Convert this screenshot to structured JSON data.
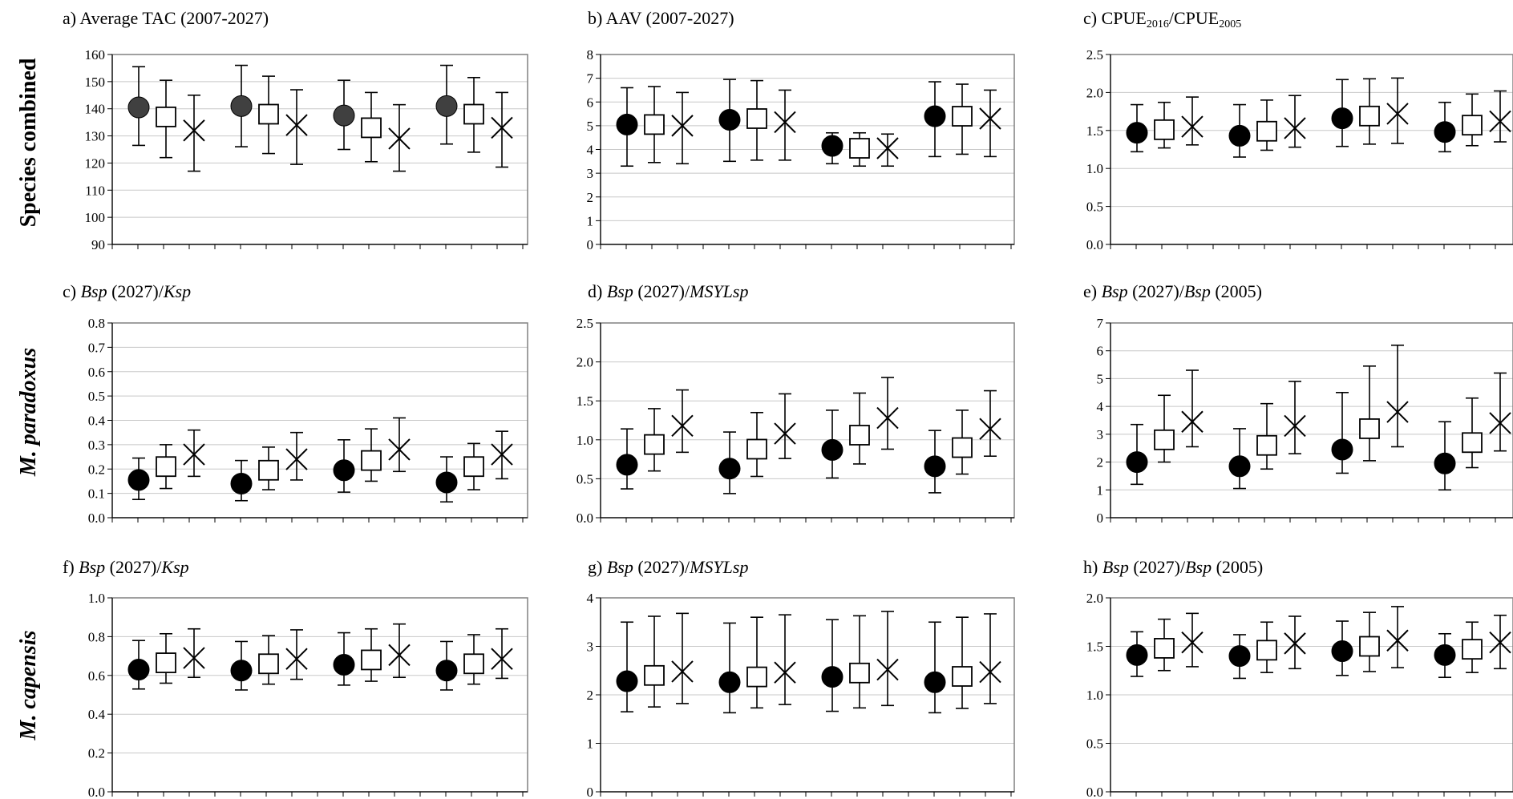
{
  "row_labels": [
    "Species combined",
    "M. paradoxus",
    "M. capensis"
  ],
  "chart_data": [
    {
      "type": "scatter",
      "row": 0,
      "col": 0,
      "title": [
        {
          "t": "a) Average TAC (2007-2027)"
        }
      ],
      "ylim": [
        90,
        160
      ],
      "yticks": [
        90,
        100,
        110,
        120,
        130,
        140,
        150,
        160
      ],
      "yticklabels": [
        "90",
        "100",
        "110",
        "120",
        "130",
        "140",
        "150",
        "160"
      ],
      "circle_fill": "#404040",
      "groups": [
        [
          {
            "m": 140.5,
            "lo": 126.5,
            "hi": 155.5
          },
          {
            "m": 137.0,
            "lo": 122.0,
            "hi": 150.5
          },
          {
            "m": 132.0,
            "lo": 117.0,
            "hi": 145.0
          }
        ],
        [
          {
            "m": 141.0,
            "lo": 126.0,
            "hi": 156.0
          },
          {
            "m": 138.0,
            "lo": 123.5,
            "hi": 152.0
          },
          {
            "m": 134.0,
            "lo": 119.5,
            "hi": 147.0
          }
        ],
        [
          {
            "m": 137.5,
            "lo": 125.0,
            "hi": 150.5
          },
          {
            "m": 133.0,
            "lo": 120.5,
            "hi": 146.0
          },
          {
            "m": 129.0,
            "lo": 117.0,
            "hi": 141.5
          }
        ],
        [
          {
            "m": 141.0,
            "lo": 127.0,
            "hi": 156.0
          },
          {
            "m": 138.0,
            "lo": 124.0,
            "hi": 151.5
          },
          {
            "m": 133.0,
            "lo": 118.5,
            "hi": 146.0
          }
        ]
      ]
    },
    {
      "type": "scatter",
      "row": 0,
      "col": 1,
      "title": [
        {
          "t": "b) AAV (2007-2027)"
        }
      ],
      "ylim": [
        0,
        8
      ],
      "yticks": [
        0,
        1,
        2,
        3,
        4,
        5,
        6,
        7,
        8
      ],
      "yticklabels": [
        "0",
        "1",
        "2",
        "3",
        "4",
        "5",
        "6",
        "7",
        "8"
      ],
      "circle_fill": "#000000",
      "groups": [
        [
          {
            "m": 5.05,
            "lo": 3.3,
            "hi": 6.6
          },
          {
            "m": 5.05,
            "lo": 3.45,
            "hi": 6.65
          },
          {
            "m": 5.0,
            "lo": 3.4,
            "hi": 6.4
          }
        ],
        [
          {
            "m": 5.25,
            "lo": 3.5,
            "hi": 6.95
          },
          {
            "m": 5.3,
            "lo": 3.55,
            "hi": 6.9
          },
          {
            "m": 5.15,
            "lo": 3.55,
            "hi": 6.5
          }
        ],
        [
          {
            "m": 4.15,
            "lo": 3.4,
            "hi": 4.7
          },
          {
            "m": 4.05,
            "lo": 3.3,
            "hi": 4.7
          },
          {
            "m": 4.05,
            "lo": 3.3,
            "hi": 4.65
          }
        ],
        [
          {
            "m": 5.4,
            "lo": 3.7,
            "hi": 6.85
          },
          {
            "m": 5.4,
            "lo": 3.8,
            "hi": 6.75
          },
          {
            "m": 5.3,
            "lo": 3.7,
            "hi": 6.5
          }
        ]
      ]
    },
    {
      "type": "scatter",
      "row": 0,
      "col": 2,
      "title": [
        {
          "t": "c) CPUE"
        },
        {
          "t": "2016",
          "sub": true
        },
        {
          "t": "/CPUE"
        },
        {
          "t": "2005",
          "sub": true
        }
      ],
      "ylim": [
        0,
        2.5
      ],
      "yticks": [
        0,
        0.5,
        1,
        1.5,
        2,
        2.5
      ],
      "yticklabels": [
        "0.0",
        "0.5",
        "1.0",
        "1.5",
        "2.0",
        "2.5"
      ],
      "circle_fill": "#000000",
      "groups": [
        [
          {
            "m": 1.47,
            "lo": 1.22,
            "hi": 1.84
          },
          {
            "m": 1.51,
            "lo": 1.27,
            "hi": 1.87
          },
          {
            "m": 1.55,
            "lo": 1.31,
            "hi": 1.94
          }
        ],
        [
          {
            "m": 1.43,
            "lo": 1.15,
            "hi": 1.84
          },
          {
            "m": 1.49,
            "lo": 1.24,
            "hi": 1.9
          },
          {
            "m": 1.53,
            "lo": 1.28,
            "hi": 1.96
          }
        ],
        [
          {
            "m": 1.66,
            "lo": 1.29,
            "hi": 2.17
          },
          {
            "m": 1.69,
            "lo": 1.32,
            "hi": 2.18
          },
          {
            "m": 1.72,
            "lo": 1.33,
            "hi": 2.19
          }
        ],
        [
          {
            "m": 1.48,
            "lo": 1.22,
            "hi": 1.87
          },
          {
            "m": 1.57,
            "lo": 1.3,
            "hi": 1.98
          },
          {
            "m": 1.62,
            "lo": 1.35,
            "hi": 2.02
          }
        ]
      ]
    },
    {
      "type": "scatter",
      "row": 1,
      "col": 0,
      "title": [
        {
          "t": "c) "
        },
        {
          "t": "Bsp",
          "i": true
        },
        {
          "t": " (2027)/"
        },
        {
          "t": "Ksp",
          "i": true
        }
      ],
      "ylim": [
        0,
        0.8
      ],
      "yticks": [
        0,
        0.1,
        0.2,
        0.3,
        0.4,
        0.5,
        0.6,
        0.7,
        0.8
      ],
      "yticklabels": [
        "0.0",
        "0.1",
        "0.2",
        "0.3",
        "0.4",
        "0.5",
        "0.6",
        "0.7",
        "0.8"
      ],
      "circle_fill": "#000000",
      "groups": [
        [
          {
            "m": 0.155,
            "lo": 0.075,
            "hi": 0.245
          },
          {
            "m": 0.21,
            "lo": 0.12,
            "hi": 0.3
          },
          {
            "m": 0.26,
            "lo": 0.17,
            "hi": 0.36
          }
        ],
        [
          {
            "m": 0.14,
            "lo": 0.07,
            "hi": 0.235
          },
          {
            "m": 0.195,
            "lo": 0.115,
            "hi": 0.29
          },
          {
            "m": 0.24,
            "lo": 0.155,
            "hi": 0.35
          }
        ],
        [
          {
            "m": 0.195,
            "lo": 0.105,
            "hi": 0.32
          },
          {
            "m": 0.235,
            "lo": 0.15,
            "hi": 0.365
          },
          {
            "m": 0.28,
            "lo": 0.19,
            "hi": 0.41
          }
        ],
        [
          {
            "m": 0.145,
            "lo": 0.065,
            "hi": 0.25
          },
          {
            "m": 0.21,
            "lo": 0.115,
            "hi": 0.305
          },
          {
            "m": 0.26,
            "lo": 0.16,
            "hi": 0.355
          }
        ]
      ]
    },
    {
      "type": "scatter",
      "row": 1,
      "col": 1,
      "title": [
        {
          "t": "d) "
        },
        {
          "t": "Bsp",
          "i": true
        },
        {
          "t": " (2027)/"
        },
        {
          "t": "MSYLsp",
          "i": true
        }
      ],
      "ylim": [
        0,
        2.5
      ],
      "yticks": [
        0,
        0.5,
        1,
        1.5,
        2,
        2.5
      ],
      "yticklabels": [
        "0.0",
        "0.5",
        "1.0",
        "1.5",
        "2.0",
        "2.5"
      ],
      "circle_fill": "#000000",
      "groups": [
        [
          {
            "m": 0.68,
            "lo": 0.37,
            "hi": 1.14
          },
          {
            "m": 0.94,
            "lo": 0.6,
            "hi": 1.4
          },
          {
            "m": 1.18,
            "lo": 0.84,
            "hi": 1.64
          }
        ],
        [
          {
            "m": 0.63,
            "lo": 0.31,
            "hi": 1.1
          },
          {
            "m": 0.88,
            "lo": 0.53,
            "hi": 1.35
          },
          {
            "m": 1.08,
            "lo": 0.76,
            "hi": 1.59
          }
        ],
        [
          {
            "m": 0.87,
            "lo": 0.51,
            "hi": 1.38
          },
          {
            "m": 1.06,
            "lo": 0.69,
            "hi": 1.6
          },
          {
            "m": 1.28,
            "lo": 0.88,
            "hi": 1.8
          }
        ],
        [
          {
            "m": 0.66,
            "lo": 0.32,
            "hi": 1.12
          },
          {
            "m": 0.9,
            "lo": 0.56,
            "hi": 1.38
          },
          {
            "m": 1.14,
            "lo": 0.79,
            "hi": 1.63
          }
        ]
      ]
    },
    {
      "type": "scatter",
      "row": 1,
      "col": 2,
      "title": [
        {
          "t": "e) "
        },
        {
          "t": "Bsp",
          "i": true
        },
        {
          "t": " (2027)/"
        },
        {
          "t": "Bsp",
          "i": true
        },
        {
          "t": " (2005)"
        }
      ],
      "ylim": [
        0,
        7
      ],
      "yticks": [
        0,
        1,
        2,
        3,
        4,
        5,
        6,
        7
      ],
      "yticklabels": [
        "0",
        "1",
        "2",
        "3",
        "4",
        "5",
        "6",
        "7"
      ],
      "circle_fill": "#000000",
      "groups": [
        [
          {
            "m": 2.0,
            "lo": 1.2,
            "hi": 3.35
          },
          {
            "m": 2.8,
            "lo": 2.0,
            "hi": 4.4
          },
          {
            "m": 3.45,
            "lo": 2.55,
            "hi": 5.3
          }
        ],
        [
          {
            "m": 1.85,
            "lo": 1.05,
            "hi": 3.2
          },
          {
            "m": 2.6,
            "lo": 1.75,
            "hi": 4.1
          },
          {
            "m": 3.3,
            "lo": 2.3,
            "hi": 4.9
          }
        ],
        [
          {
            "m": 2.45,
            "lo": 1.6,
            "hi": 4.5
          },
          {
            "m": 3.2,
            "lo": 2.05,
            "hi": 5.45
          },
          {
            "m": 3.8,
            "lo": 2.55,
            "hi": 6.2
          }
        ],
        [
          {
            "m": 1.95,
            "lo": 1.0,
            "hi": 3.45
          },
          {
            "m": 2.7,
            "lo": 1.8,
            "hi": 4.3
          },
          {
            "m": 3.4,
            "lo": 2.4,
            "hi": 5.2
          }
        ]
      ]
    },
    {
      "type": "scatter",
      "row": 2,
      "col": 0,
      "title": [
        {
          "t": "f) "
        },
        {
          "t": "Bsp",
          "i": true
        },
        {
          "t": " (2027)/"
        },
        {
          "t": "Ksp",
          "i": true
        }
      ],
      "ylim": [
        0,
        1
      ],
      "yticks": [
        0,
        0.2,
        0.4,
        0.6,
        0.8,
        1
      ],
      "yticklabels": [
        "0.0",
        "0.2",
        "0.4",
        "0.6",
        "0.8",
        "1.0"
      ],
      "circle_fill": "#000000",
      "groups": [
        [
          {
            "m": 0.63,
            "lo": 0.53,
            "hi": 0.78
          },
          {
            "m": 0.665,
            "lo": 0.56,
            "hi": 0.815
          },
          {
            "m": 0.69,
            "lo": 0.59,
            "hi": 0.84
          }
        ],
        [
          {
            "m": 0.625,
            "lo": 0.525,
            "hi": 0.775
          },
          {
            "m": 0.66,
            "lo": 0.555,
            "hi": 0.805
          },
          {
            "m": 0.685,
            "lo": 0.58,
            "hi": 0.835
          }
        ],
        [
          {
            "m": 0.655,
            "lo": 0.55,
            "hi": 0.82
          },
          {
            "m": 0.68,
            "lo": 0.57,
            "hi": 0.84
          },
          {
            "m": 0.705,
            "lo": 0.59,
            "hi": 0.865
          }
        ],
        [
          {
            "m": 0.625,
            "lo": 0.525,
            "hi": 0.775
          },
          {
            "m": 0.66,
            "lo": 0.555,
            "hi": 0.81
          },
          {
            "m": 0.685,
            "lo": 0.585,
            "hi": 0.84
          }
        ]
      ]
    },
    {
      "type": "scatter",
      "row": 2,
      "col": 1,
      "title": [
        {
          "t": "g) "
        },
        {
          "t": "Bsp",
          "i": true
        },
        {
          "t": " (2027)/"
        },
        {
          "t": "MSYLsp",
          "i": true
        }
      ],
      "ylim": [
        0,
        4
      ],
      "yticks": [
        0,
        1,
        2,
        3,
        4
      ],
      "yticklabels": [
        "0",
        "1",
        "2",
        "3",
        "4"
      ],
      "circle_fill": "#000000",
      "groups": [
        [
          {
            "m": 2.28,
            "lo": 1.65,
            "hi": 3.5
          },
          {
            "m": 2.4,
            "lo": 1.75,
            "hi": 3.62
          },
          {
            "m": 2.48,
            "lo": 1.82,
            "hi": 3.68
          }
        ],
        [
          {
            "m": 2.26,
            "lo": 1.63,
            "hi": 3.48
          },
          {
            "m": 2.37,
            "lo": 1.73,
            "hi": 3.6
          },
          {
            "m": 2.46,
            "lo": 1.8,
            "hi": 3.65
          }
        ],
        [
          {
            "m": 2.37,
            "lo": 1.66,
            "hi": 3.55
          },
          {
            "m": 2.45,
            "lo": 1.73,
            "hi": 3.63
          },
          {
            "m": 2.52,
            "lo": 1.78,
            "hi": 3.72
          }
        ],
        [
          {
            "m": 2.26,
            "lo": 1.63,
            "hi": 3.5
          },
          {
            "m": 2.38,
            "lo": 1.72,
            "hi": 3.6
          },
          {
            "m": 2.47,
            "lo": 1.82,
            "hi": 3.67
          }
        ]
      ]
    },
    {
      "type": "scatter",
      "row": 2,
      "col": 2,
      "title": [
        {
          "t": "h) "
        },
        {
          "t": "Bsp",
          "i": true
        },
        {
          "t": " (2027)/"
        },
        {
          "t": "Bsp",
          "i": true
        },
        {
          "t": " (2005)"
        }
      ],
      "ylim": [
        0,
        2
      ],
      "yticks": [
        0,
        0.5,
        1,
        1.5,
        2
      ],
      "yticklabels": [
        "0.0",
        "0.5",
        "1.0",
        "1.5",
        "2.0"
      ],
      "circle_fill": "#000000",
      "groups": [
        [
          {
            "m": 1.41,
            "lo": 1.19,
            "hi": 1.65
          },
          {
            "m": 1.48,
            "lo": 1.25,
            "hi": 1.78
          },
          {
            "m": 1.54,
            "lo": 1.29,
            "hi": 1.84
          }
        ],
        [
          {
            "m": 1.4,
            "lo": 1.17,
            "hi": 1.62
          },
          {
            "m": 1.46,
            "lo": 1.23,
            "hi": 1.75
          },
          {
            "m": 1.53,
            "lo": 1.27,
            "hi": 1.81
          }
        ],
        [
          {
            "m": 1.45,
            "lo": 1.2,
            "hi": 1.76
          },
          {
            "m": 1.5,
            "lo": 1.24,
            "hi": 1.85
          },
          {
            "m": 1.56,
            "lo": 1.28,
            "hi": 1.91
          }
        ],
        [
          {
            "m": 1.41,
            "lo": 1.18,
            "hi": 1.63
          },
          {
            "m": 1.47,
            "lo": 1.23,
            "hi": 1.75
          },
          {
            "m": 1.54,
            "lo": 1.27,
            "hi": 1.82
          }
        ]
      ]
    }
  ]
}
